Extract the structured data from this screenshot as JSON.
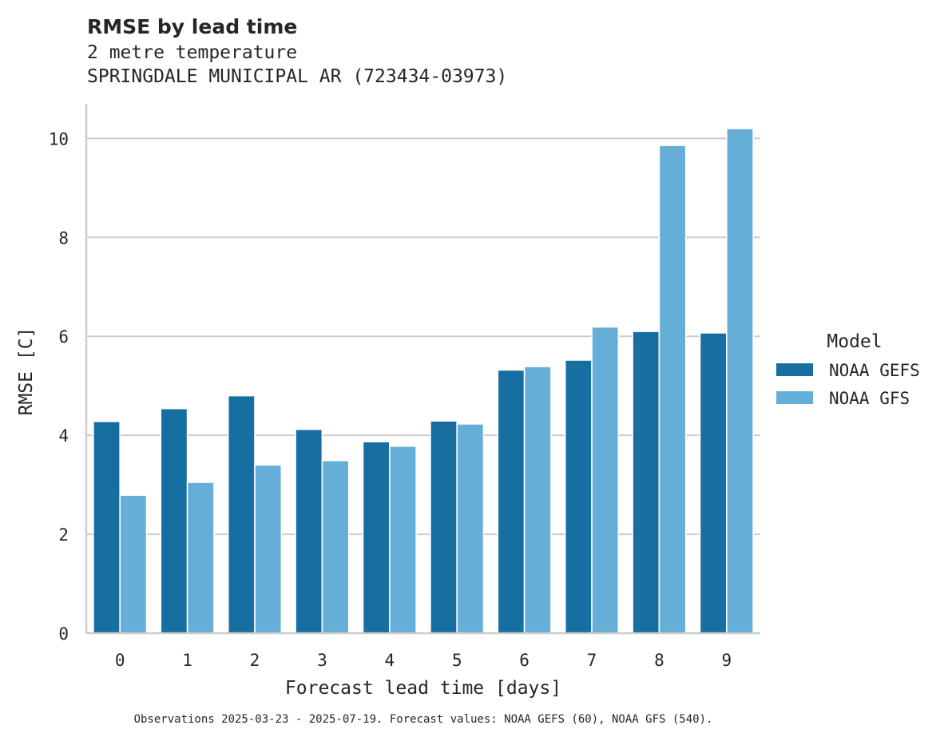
{
  "chart_data": {
    "type": "bar",
    "title": "RMSE by lead time",
    "subtitle_lines": [
      "2 metre temperature",
      "SPRINGDALE MUNICIPAL AR (723434-03973)"
    ],
    "xlabel": "Forecast lead time [days]",
    "ylabel": "RMSE [C]",
    "categories": [
      "0",
      "1",
      "2",
      "3",
      "4",
      "5",
      "6",
      "7",
      "8",
      "9"
    ],
    "series": [
      {
        "name": "NOAA GEFS",
        "color": "#176ea0",
        "values": [
          4.28,
          4.54,
          4.8,
          4.12,
          3.87,
          4.29,
          5.32,
          5.52,
          6.1,
          6.07
        ]
      },
      {
        "name": "NOAA GFS",
        "color": "#65aed8",
        "values": [
          2.79,
          3.05,
          3.4,
          3.49,
          3.78,
          4.23,
          5.39,
          6.19,
          9.86,
          10.2
        ]
      }
    ],
    "ylim": [
      0,
      10.7
    ],
    "yticks": [
      "0",
      "2",
      "4",
      "6",
      "8",
      "10"
    ],
    "grid": "horizontal",
    "legend": {
      "title": "Model",
      "placement": "right"
    },
    "footnote": "Observations 2025-03-23 - 2025-07-19. Forecast values: NOAA GEFS (60), NOAA GFS (540)."
  }
}
